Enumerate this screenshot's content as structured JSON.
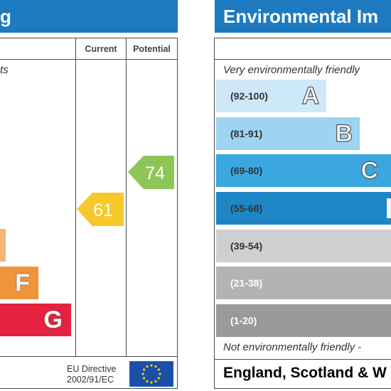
{
  "energy_panel": {
    "title_fragment": "g",
    "col_current": "Current",
    "col_potential": "Potential",
    "top_note_fragment": "ts",
    "bands": [
      {
        "letter": "F",
        "color": "#f0943c"
      },
      {
        "letter": "G",
        "color": "#e3233f"
      }
    ],
    "partial_band_color": "#f4b67a",
    "current": {
      "value": "61",
      "color": "#f7c829"
    },
    "potential": {
      "value": "74",
      "color": "#8dc657"
    },
    "footer_text_line1": "EU Directive",
    "footer_text_line2": "2002/91/EC"
  },
  "environment_panel": {
    "title": "Environmental Im",
    "top_note": "Very environmentally friendly",
    "bottom_note": "Not environmentally friendly -",
    "footer": "England, Scotland & W",
    "bands": [
      {
        "range": "(92-100)",
        "letter": "A",
        "color": "#cde8f8"
      },
      {
        "range": "(81-91)",
        "letter": "B",
        "color": "#9ed3f2"
      },
      {
        "range": "(69-80)",
        "letter": "C",
        "color": "#3aa7e1"
      },
      {
        "range": "(55-68)",
        "letter": "",
        "color": "#1f86c6"
      },
      {
        "range": "(39-54)",
        "letter": "",
        "color": "#cfcfcf"
      },
      {
        "range": "(21-38)",
        "letter": "",
        "color": "#b3b3b3"
      },
      {
        "range": "(1-20)",
        "letter": "",
        "color": "#9a9a9a"
      }
    ]
  },
  "chart_data": {
    "type": "table",
    "energy_current": 61,
    "energy_potential": 74,
    "environmental_bands": [
      "(92-100)",
      "(81-91)",
      "(69-80)",
      "(55-68)",
      "(39-54)",
      "(21-38)",
      "(1-20)"
    ]
  }
}
